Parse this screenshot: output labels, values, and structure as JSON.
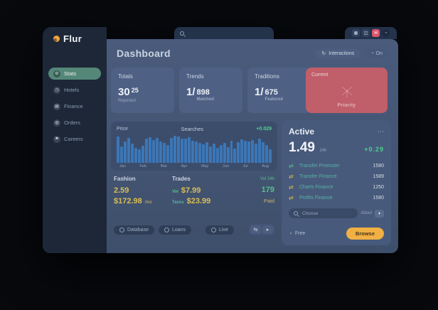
{
  "app": {
    "logo": "Flur"
  },
  "topbar": {
    "search_placeholder": "",
    "icons": [
      {
        "name": "grid-icon",
        "glyph": "▦"
      },
      {
        "name": "apps-icon",
        "glyph": "◫"
      },
      {
        "name": "notifications-icon",
        "glyph": "✉"
      },
      {
        "name": "avatar-icon",
        "glyph": "◔"
      }
    ]
  },
  "sidebar": {
    "items": [
      {
        "label": "Stats",
        "icon": "⚙",
        "active": true
      },
      {
        "label": "Hotels",
        "icon": "◷",
        "active": false
      },
      {
        "label": "Finance",
        "icon": "▤",
        "active": false
      },
      {
        "label": "Orders",
        "icon": "◍",
        "active": false
      },
      {
        "label": "Careers",
        "icon": "⚑",
        "active": false
      }
    ]
  },
  "header": {
    "title": "Dashboard",
    "action_button": {
      "icon": "↻",
      "label": "Interactions"
    },
    "status_chip": {
      "icon": "◔",
      "label": "On"
    }
  },
  "stat_cards": [
    {
      "label": "Totals",
      "value": "30",
      "sup": "25",
      "caption": "Reported"
    },
    {
      "label": "Trends",
      "value": "1/",
      "secondary": "898",
      "caption": "Matched"
    },
    {
      "label": "Traditions",
      "value": "1/",
      "secondary": "675",
      "caption": "Featured"
    }
  ],
  "priority_card": {
    "title": "Current",
    "label": "Priority"
  },
  "chart_data": {
    "type": "bar",
    "title": "Searches",
    "left_label": "Price",
    "change": "+0.029",
    "categories": [
      "Jan",
      "Feb",
      "Mar",
      "Apr",
      "May",
      "Jun",
      "Jul",
      "Aug"
    ],
    "values": [
      92,
      58,
      75,
      88,
      68,
      52,
      48,
      60,
      85,
      90,
      80,
      87,
      76,
      70,
      62,
      88,
      96,
      92,
      86,
      84,
      89,
      78,
      74,
      70,
      66,
      73,
      58,
      68,
      52,
      62,
      70,
      56,
      78,
      50,
      72,
      83,
      78,
      76,
      80,
      68,
      86,
      72,
      62,
      48
    ],
    "xlabel": "",
    "ylabel": "",
    "ylim": [
      0,
      100
    ],
    "grid": false,
    "legend": "none"
  },
  "summary": {
    "col1": {
      "header": "Fashion",
      "value1": "2.59",
      "value2": "$172.98",
      "value2_suffix": "/mo"
    },
    "col2": {
      "header": "Trades",
      "line1_prefix": "Vol",
      "line1_value": "$7.99",
      "line2_prefix": "Taxes",
      "line2_value": "$23.99"
    },
    "col3": {
      "caption": "Vol 24h",
      "value": "179",
      "status": "Paid"
    }
  },
  "chips": [
    {
      "label": "Database"
    },
    {
      "label": "Loans"
    },
    {
      "label": "Live"
    }
  ],
  "pager": {
    "prev": "⇆",
    "next": "▸"
  },
  "active_panel": {
    "title": "Active",
    "menu": "⋯",
    "value": "1.49",
    "unit": "24h",
    "change": "+0.29",
    "rows": [
      {
        "icon": "⇄",
        "color": "#55c08a",
        "label": "Transfer Promoter",
        "value": "1580"
      },
      {
        "icon": "⇄",
        "color": "#d9bd55",
        "label": "Transfer Finance",
        "value": "1589"
      },
      {
        "icon": "⇄",
        "color": "#d9bd55",
        "label": "Charts Finance",
        "value": "1250"
      },
      {
        "icon": "⇄",
        "color": "#d9bd55",
        "label": "Profits Finance",
        "value": "1580"
      }
    ],
    "search_placeholder": "Choose",
    "search_hint": "About",
    "dropdown_glyph": "▾",
    "footer_icon": "◔",
    "footer_label": "Free",
    "cta_label": "Browse"
  },
  "colors": {
    "accent_orange": "#f0b043",
    "accent_green": "#4fd08e",
    "accent_yellow": "#d9bd55",
    "accent_teal": "#57b3a8",
    "accent_red": "#d8566b",
    "bar_blue": "#3b77b7",
    "card_red": "#c05e69",
    "nav_active_green": "#548778"
  }
}
